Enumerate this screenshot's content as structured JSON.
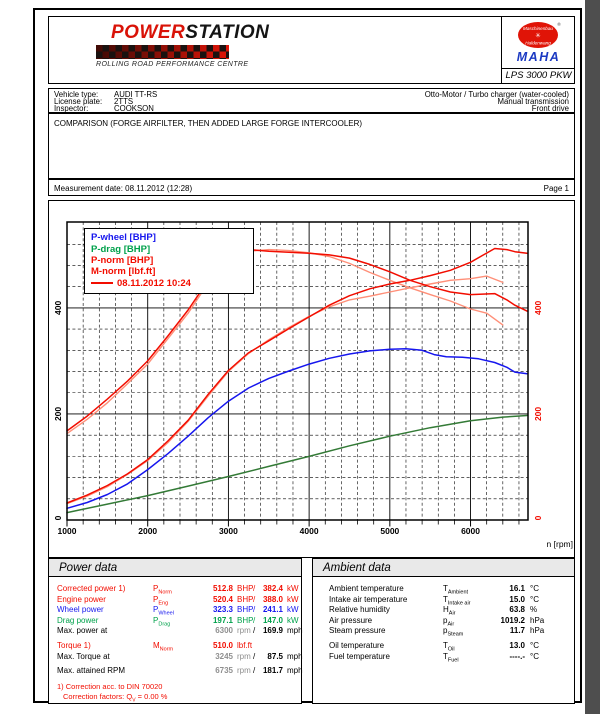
{
  "page": {
    "header": {
      "brand": {
        "power": "POWER",
        "station": "STATION",
        "tagline": "ROLLING ROAD PERFORMANCE CENTRE"
      },
      "maha": {
        "badge_top": "Maschinenbau",
        "badge_bottom": "Haldenwang",
        "registered": "®",
        "name": "MAHA",
        "device": "LPS 3000 PKW"
      }
    },
    "vehicle": {
      "rows": [
        {
          "label": "Vehicle type:",
          "value": "AUDI TT-RS",
          "right": "Otto-Motor / Turbo charger (water-cooled)"
        },
        {
          "label": "License plate:",
          "value": "2TTS",
          "right": "Manual transmission"
        },
        {
          "label": "Inspector:",
          "value": "COOKSON",
          "right": "Front drive"
        }
      ]
    },
    "comment": "COMPARISON (FORGE AIRFILTER, THEN ADDED LARGE FORGE INTERCOOLER)",
    "meta": {
      "measurement_date": "Measurement date: 08.11.2012 (12:28)",
      "page_label": "Page 1"
    }
  },
  "colors": {
    "red": "#f20d00",
    "blue": "#1616ee",
    "green": "#00a14b",
    "green_curve": "#337a36",
    "salmon": "#ff8f78",
    "black": "#000000",
    "gray_value": "#8f8f8f",
    "header_band": "#e9e9e9",
    "page_shadow": "#4e4e4e"
  },
  "chart_data": {
    "type": "line",
    "xlabel": "n [rpm]",
    "x_range": [
      1000,
      6712
    ],
    "x_ticks": [
      1000,
      2000,
      3000,
      4000,
      5000,
      6000
    ],
    "x_minor_step": 200,
    "y_left_range": [
      0,
      562
    ],
    "y_ticks": [
      0,
      200,
      400
    ],
    "y_minor_step": 40,
    "y_left_units": "BHP",
    "y_right_units": "lbf.ft",
    "grid": "major solid, minor dashed",
    "legend_position": "top-left",
    "legend": [
      {
        "label": "P-wheel [BHP]",
        "color": "#1616ee",
        "swatch": false
      },
      {
        "label": "P-drag [BHP]",
        "color": "#00a14b",
        "swatch": false
      },
      {
        "label": "P-norm [BHP]",
        "color": "#f20d00",
        "swatch": false
      },
      {
        "label": "M-norm [lbf.ft]",
        "color": "#f20d00",
        "swatch": true
      }
    ],
    "legend_date": "08.11.2012 10:24",
    "series": [
      {
        "name": "M-norm-previous-run",
        "color": "#ff8f78",
        "width": 1.4,
        "points": [
          [
            1000,
            163
          ],
          [
            1250,
            190
          ],
          [
            1500,
            221
          ],
          [
            1750,
            257
          ],
          [
            2000,
            294
          ],
          [
            2250,
            342
          ],
          [
            2500,
            390
          ],
          [
            2750,
            447
          ],
          [
            3000,
            490
          ],
          [
            3250,
            507
          ],
          [
            3500,
            510
          ],
          [
            3750,
            508
          ],
          [
            4000,
            504
          ],
          [
            4250,
            497
          ],
          [
            4500,
            484
          ],
          [
            4750,
            467
          ],
          [
            5000,
            452
          ],
          [
            5250,
            438
          ],
          [
            5500,
            425
          ],
          [
            5750,
            413
          ],
          [
            6000,
            398
          ],
          [
            6200,
            390
          ],
          [
            6400,
            368
          ]
        ]
      },
      {
        "name": "P-norm-previous-run",
        "color": "#ff8f78",
        "width": 1.4,
        "points": [
          [
            1000,
            31
          ],
          [
            1250,
            45
          ],
          [
            1500,
            63
          ],
          [
            1750,
            86
          ],
          [
            2000,
            112
          ],
          [
            2250,
            146
          ],
          [
            2500,
            186
          ],
          [
            2750,
            234
          ],
          [
            3000,
            280
          ],
          [
            3250,
            314
          ],
          [
            3500,
            340
          ],
          [
            3750,
            363
          ],
          [
            4000,
            384
          ],
          [
            4250,
            402
          ],
          [
            4500,
            415
          ],
          [
            4750,
            422
          ],
          [
            5000,
            430
          ],
          [
            5250,
            438
          ],
          [
            5500,
            445
          ],
          [
            5750,
            452
          ],
          [
            6000,
            455
          ],
          [
            6200,
            460
          ],
          [
            6400,
            448
          ]
        ]
      },
      {
        "name": "P-drag",
        "color": "#337a36",
        "width": 1.5,
        "points": [
          [
            1000,
            14
          ],
          [
            1500,
            30
          ],
          [
            2000,
            46
          ],
          [
            2500,
            64
          ],
          [
            3000,
            82
          ],
          [
            3500,
            101
          ],
          [
            4000,
            120
          ],
          [
            4500,
            140
          ],
          [
            5000,
            158
          ],
          [
            5500,
            174
          ],
          [
            6000,
            187
          ],
          [
            6400,
            194
          ],
          [
            6700,
            197
          ]
        ]
      },
      {
        "name": "P-wheel",
        "color": "#1616ee",
        "width": 1.5,
        "points": [
          [
            1000,
            22
          ],
          [
            1250,
            33
          ],
          [
            1500,
            48
          ],
          [
            1750,
            68
          ],
          [
            2000,
            95
          ],
          [
            2250,
            125
          ],
          [
            2500,
            158
          ],
          [
            2750,
            193
          ],
          [
            3000,
            224
          ],
          [
            3250,
            249
          ],
          [
            3500,
            267
          ],
          [
            3750,
            281
          ],
          [
            4000,
            294
          ],
          [
            4250,
            305
          ],
          [
            4500,
            313
          ],
          [
            4750,
            319
          ],
          [
            5000,
            322
          ],
          [
            5200,
            323
          ],
          [
            5400,
            320
          ],
          [
            5550,
            312
          ],
          [
            5700,
            308
          ],
          [
            5900,
            307
          ],
          [
            6100,
            304
          ],
          [
            6300,
            297
          ],
          [
            6450,
            288
          ],
          [
            6550,
            279
          ],
          [
            6700,
            276
          ]
        ]
      },
      {
        "name": "M-norm",
        "color": "#f20d00",
        "width": 1.5,
        "points": [
          [
            1000,
            168
          ],
          [
            1250,
            196
          ],
          [
            1500,
            228
          ],
          [
            1750,
            262
          ],
          [
            2000,
            300
          ],
          [
            2250,
            347
          ],
          [
            2500,
            396
          ],
          [
            2750,
            452
          ],
          [
            3000,
            493
          ],
          [
            3245,
            510
          ],
          [
            3500,
            507
          ],
          [
            3750,
            505
          ],
          [
            4000,
            503
          ],
          [
            4250,
            500
          ],
          [
            4500,
            494
          ],
          [
            4750,
            482
          ],
          [
            5000,
            468
          ],
          [
            5250,
            452
          ],
          [
            5500,
            440
          ],
          [
            5750,
            430
          ],
          [
            6000,
            425
          ],
          [
            6150,
            426
          ],
          [
            6300,
            427
          ],
          [
            6450,
            415
          ],
          [
            6550,
            405
          ],
          [
            6700,
            394
          ]
        ]
      },
      {
        "name": "P-norm",
        "color": "#f20d00",
        "width": 1.5,
        "points": [
          [
            1000,
            32
          ],
          [
            1250,
            47
          ],
          [
            1500,
            65
          ],
          [
            1750,
            87
          ],
          [
            2000,
            114
          ],
          [
            2250,
            149
          ],
          [
            2500,
            188
          ],
          [
            2750,
            237
          ],
          [
            3000,
            282
          ],
          [
            3245,
            315
          ],
          [
            3500,
            338
          ],
          [
            3750,
            361
          ],
          [
            4000,
            383
          ],
          [
            4250,
            405
          ],
          [
            4500,
            423
          ],
          [
            4750,
            436
          ],
          [
            5000,
            445
          ],
          [
            5250,
            452
          ],
          [
            5500,
            461
          ],
          [
            5750,
            471
          ],
          [
            6000,
            486
          ],
          [
            6150,
            499
          ],
          [
            6300,
            512
          ],
          [
            6450,
            510
          ],
          [
            6550,
            506
          ],
          [
            6700,
            503
          ]
        ]
      }
    ]
  },
  "power_data": {
    "title": "Power data",
    "rows": [
      {
        "label": "Corrected power 1)",
        "sym": "P",
        "sub": "Norm",
        "color": "red",
        "v1": "512.8",
        "u1": "BHP",
        "slash": "/",
        "v2": "382.4",
        "u2": "kW"
      },
      {
        "label": "Engine power",
        "sym": "P",
        "sub": "Eng",
        "color": "red",
        "v1": "520.4",
        "u1": "BHP",
        "slash": "/",
        "v2": "388.0",
        "u2": "kW"
      },
      {
        "label": "Wheel power",
        "sym": "P",
        "sub": "Wheel",
        "color": "blue",
        "v1": "323.3",
        "u1": "BHP",
        "slash": "/",
        "v2": "241.1",
        "u2": "kW"
      },
      {
        "label": "Drag power",
        "sym": "P",
        "sub": "Drag",
        "color": "green",
        "v1": "197.1",
        "u1": "BHP",
        "slash": "/",
        "v2": "147.0",
        "u2": "kW"
      },
      {
        "label": "Max. power at",
        "color": "black",
        "muted": true,
        "v1": "6300",
        "u1": "rpm",
        "slash": "/",
        "v2": "169.9",
        "u2": "mph",
        "gap_after": true
      },
      {
        "label": "Torque 1)",
        "sym": "M",
        "sub": "Norm",
        "color": "red",
        "v1": "510.0",
        "u1": "lbf.ft"
      },
      {
        "label": "Max. Torque at",
        "color": "black",
        "muted": true,
        "v1": "3245",
        "u1": "rpm",
        "slash": "/",
        "v2": "87.5",
        "u2": "mph",
        "gap_after": true
      },
      {
        "label": "Max. attained RPM",
        "color": "black",
        "muted": true,
        "v1": "6735",
        "u1": "rpm",
        "slash": "/",
        "v2": "181.7",
        "u2": "mph",
        "gap_after": true
      }
    ],
    "footnote1": "1) Correction acc. to DIN 70020",
    "footnote2_pre": "Correction factors: Q",
    "footnote2_sub": "V",
    "footnote2_post": " =   0.00 %"
  },
  "ambient_data": {
    "title": "Ambient data",
    "rows": [
      {
        "label": "Ambient temperature",
        "sym": "T",
        "sub": "Ambient",
        "v1": "16.1",
        "u1": "°C"
      },
      {
        "label": "Intake air temperature",
        "sym": "T",
        "sub": "Intake air",
        "v1": "15.0",
        "u1": "°C"
      },
      {
        "label": "Relative humidity",
        "sym": "H",
        "sub": "Air",
        "v1": "63.8",
        "u1": "%"
      },
      {
        "label": "Air pressure",
        "sym": "p",
        "sub": "Air",
        "v1": "1019.2",
        "u1": "hPa"
      },
      {
        "label": "Steam pressure",
        "sym": "p",
        "sub": "Steam",
        "v1": "11.7",
        "u1": "hPa",
        "gap_after": true
      },
      {
        "label": "Oil temperature",
        "sym": "T",
        "sub": "Oil",
        "v1": "13.0",
        "u1": "°C"
      },
      {
        "label": "Fuel temperature",
        "sym": "T",
        "sub": "Fuel",
        "v1": "----.-",
        "u1": "°C"
      }
    ]
  }
}
